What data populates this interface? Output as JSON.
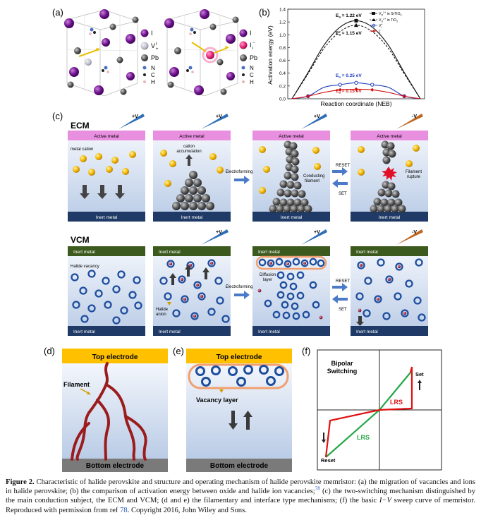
{
  "panels": {
    "a": "(a)",
    "b": "(b)",
    "c": "(c)",
    "d": "(d)",
    "e": "(e)",
    "f": "(f)"
  },
  "panel_a": {
    "legend1": {
      "I": "I",
      "V": "V",
      "V_sup": "I",
      "V_sub": "+",
      "Pb": "Pb",
      "N": "N",
      "C": "C",
      "H": "H"
    },
    "legend2": {
      "I": "I",
      "Ii": "I",
      "Ii_sub": "i",
      "Ii_sup": "−",
      "Pb": "Pb",
      "N": "N",
      "C": "C",
      "H": "H"
    }
  },
  "colors": {
    "iodine": "#6b0f8a",
    "vacancy": "#b9b9c8",
    "lead": "#5a5a5a",
    "nitrogen": "#4a6fc0",
    "carbon": "#222222",
    "hydrogen": "#e8b5b5",
    "interstitial": "#e8247a",
    "active_metal": "#e88fe0",
    "inert_metal_ecm": "#1f3a66",
    "inert_metal_vcm": "#3d5a1e",
    "electrode": "#ffc000",
    "bottom_electrode": "#7a7a7a",
    "filament": "#9b1c1c",
    "green": "#22a745",
    "red": "#e01010"
  },
  "chart_data": {
    "type": "line",
    "xlabel": "Reaction coordinate (NEB)",
    "ylabel": "Activation energy (eV)",
    "ylim": [
      0,
      1.4
    ],
    "yticks": [
      "0.0",
      "0.2",
      "0.4",
      "0.6",
      "0.8",
      "1.0",
      "1.2",
      "1.4"
    ],
    "legend_position": "top-right",
    "series": [
      {
        "name": "V",
        "name_sub": "O",
        "name_sup": "2+",
        "name_suffix": " in SrTiO",
        "name_suffix_sub": "3",
        "style": "solid-square",
        "x": [
          0,
          1,
          2,
          3,
          4,
          5,
          6,
          7,
          8
        ],
        "values": [
          0,
          0.41,
          0.84,
          1.12,
          1.22,
          1.12,
          0.84,
          0.41,
          0
        ]
      },
      {
        "name": "V",
        "name_sub": "O",
        "name_sup": "2+",
        "name_suffix": " in TiO",
        "name_suffix_sub": "2",
        "style": "dash-triangle",
        "x": [
          0,
          1,
          2,
          3,
          4,
          5,
          6,
          7,
          8
        ],
        "values": [
          0,
          0.39,
          0.79,
          1.05,
          1.15,
          1.05,
          0.79,
          0.39,
          0
        ]
      },
      {
        "name": "V",
        "name_sup": "+",
        "name_sub": "I",
        "style": "blue-circle",
        "x": [
          0,
          1,
          2,
          3,
          4,
          5,
          6,
          7,
          8
        ],
        "values": [
          0,
          0.04,
          0.18,
          0.22,
          0.25,
          0.22,
          0.18,
          0.04,
          0
        ]
      },
      {
        "name": "I",
        "name_sup": "−",
        "name_sub": "i",
        "style": "red-diamond",
        "x": [
          0,
          1,
          2,
          3,
          4,
          5,
          6,
          7,
          8
        ],
        "values": [
          0,
          0.04,
          0.1,
          0.14,
          0.15,
          0.14,
          0.1,
          0.04,
          0
        ]
      }
    ],
    "annotations": [
      {
        "text": "E",
        "sub": "a",
        "value": " = 1.22 eV",
        "x": 4,
        "y": 1.22
      },
      {
        "text": "E",
        "sub": "a",
        "value": " = 1.15 eV",
        "x": 4,
        "y": 1.15
      },
      {
        "text": "E",
        "sub": "a",
        "value": " = 0.25 eV",
        "x": 4,
        "y": 0.25
      },
      {
        "text": "E",
        "sub": "a",
        "value": " = 0.15 eV",
        "x": 4,
        "y": 0.15
      }
    ]
  },
  "panel_c": {
    "ecm_title": "ECM",
    "vcm_title": "VCM",
    "plus_v": "+V",
    "minus_v": "-V",
    "active_metal": "Active metal",
    "inert_metal": "Inert metal",
    "metal_cation": "metal cation",
    "cation_accumulation_1": "cation",
    "cation_accumulation_2": "accumulation",
    "electroforming": "Electroforming",
    "reset": "RESET",
    "set": "SET",
    "conducting_filament_1": "Conducting",
    "conducting_filament_2": "filament",
    "filament_rupture_1": "Filament",
    "filament_rupture_2": "rupture",
    "halide_vacancy": "Halide vacancy",
    "halide_anion_1": "Halide",
    "halide_anion_2": "anion",
    "diffusion_layer_1": "Diffusion",
    "diffusion_layer_2": "layer"
  },
  "panel_d": {
    "top": "Top electrode",
    "bottom": "Bottom electrode",
    "filament": "Filament"
  },
  "panel_e": {
    "top": "Top electrode",
    "bottom": "Bottom electrode",
    "vacancy_layer": "Vacancy layer"
  },
  "panel_f": {
    "title_1": "Bipolar",
    "title_2": "Switching",
    "set": "Set",
    "reset": "Reset",
    "lrs": "LRS"
  },
  "caption": {
    "label": "Figure 2.",
    "text_1": " Characteristic of halide perovskite and structure and operating mechanism of halide perovskite memristor: (a) the migration of vacancies and ions in halide perovskite; (b) the comparison of activation energy between oxide and halide ion vacancies;",
    "ref_sup": "78",
    "text_2": " (c) the two-switching mechanism distinguished by the main conduction subject, the ECM and VCM; (d and e) the filamentary and interface type mechanisms; (f) the basic ",
    "iv": "I−V",
    "text_3": " sweep curve of memristor. Reproduced with permission from ref ",
    "ref": "78",
    "text_4": ". Copyright 2016, John Wiley and Sons."
  }
}
